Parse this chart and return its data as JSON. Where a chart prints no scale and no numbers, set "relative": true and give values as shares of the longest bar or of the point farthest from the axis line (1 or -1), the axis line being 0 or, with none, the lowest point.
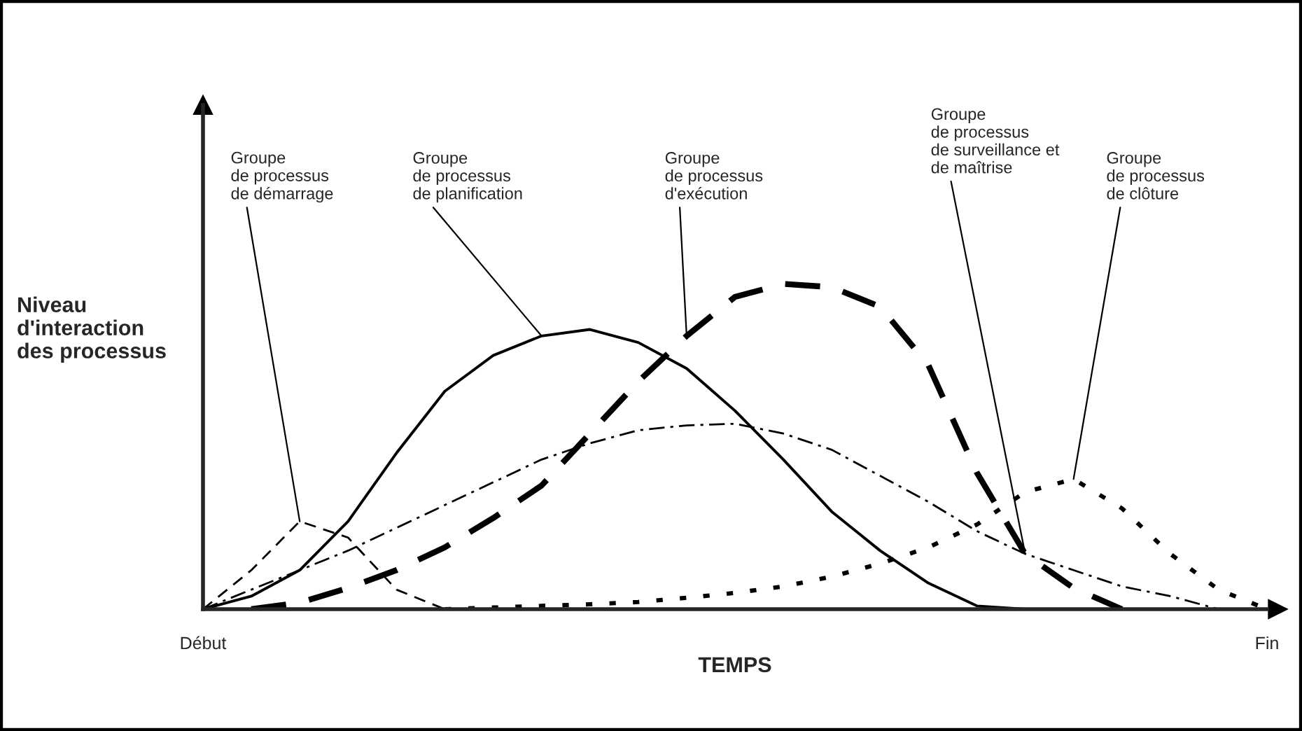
{
  "chart_data": {
    "type": "line",
    "relative": true,
    "xlabel": "TEMPS",
    "ylabel": "Niveau\nd'interaction\ndes processus",
    "categories": [
      "Début",
      null,
      null,
      null,
      null,
      null,
      null,
      null,
      null,
      null,
      null,
      null,
      null,
      null,
      null,
      null,
      null,
      null,
      null,
      null,
      null,
      null,
      "Fin"
    ],
    "marker": "none",
    "series": [
      {
        "name": "Groupe\nde processus\nde démarrage",
        "color": "#000000",
        "line_style": "dashed",
        "values": [
          0,
          0.12,
          0.27,
          0.22,
          0.06,
          0,
          null,
          null,
          null,
          null,
          null,
          null,
          null,
          null,
          null,
          null,
          null,
          null,
          null,
          null,
          null,
          null,
          null
        ]
      },
      {
        "name": "Groupe\nde processus\nde planification",
        "color": "#000000",
        "line_style": "solid",
        "values": [
          0,
          0.04,
          0.12,
          0.27,
          0.48,
          0.67,
          0.78,
          0.84,
          0.86,
          0.82,
          0.74,
          0.61,
          0.46,
          0.3,
          0.18,
          0.08,
          0.01,
          0,
          null,
          null,
          null,
          null,
          null
        ]
      },
      {
        "name": "Groupe\nde processus\nd'exécution",
        "color": "#000000",
        "line_style": "dashed",
        "values": [
          null,
          0,
          0.02,
          0.065,
          0.12,
          0.19,
          0.28,
          0.38,
          0.54,
          0.7,
          0.84,
          0.96,
          1.0,
          0.99,
          0.93,
          0.75,
          0.42,
          0.17,
          0.065,
          0,
          null,
          null,
          null
        ]
      },
      {
        "name": "Groupe\nde processus\nde surveillance et\nde maîtrise",
        "color": "#000000",
        "line_style": "dashdot",
        "values": [
          0,
          0.06,
          0.12,
          0.18,
          0.25,
          0.32,
          0.39,
          0.46,
          0.51,
          0.55,
          0.565,
          0.57,
          0.54,
          0.49,
          0.41,
          0.33,
          0.24,
          0.17,
          0.12,
          0.07,
          0.04,
          0,
          null
        ]
      },
      {
        "name": "Groupe\nde processus\nde clôture",
        "color": "#000000",
        "line_style": "dotted",
        "values": [
          null,
          null,
          null,
          null,
          null,
          0,
          0.005,
          0.01,
          0.015,
          0.022,
          0.035,
          0.05,
          0.07,
          0.1,
          0.14,
          0.19,
          0.26,
          0.36,
          0.4,
          0.31,
          0.17,
          0.06,
          0
        ]
      }
    ]
  }
}
